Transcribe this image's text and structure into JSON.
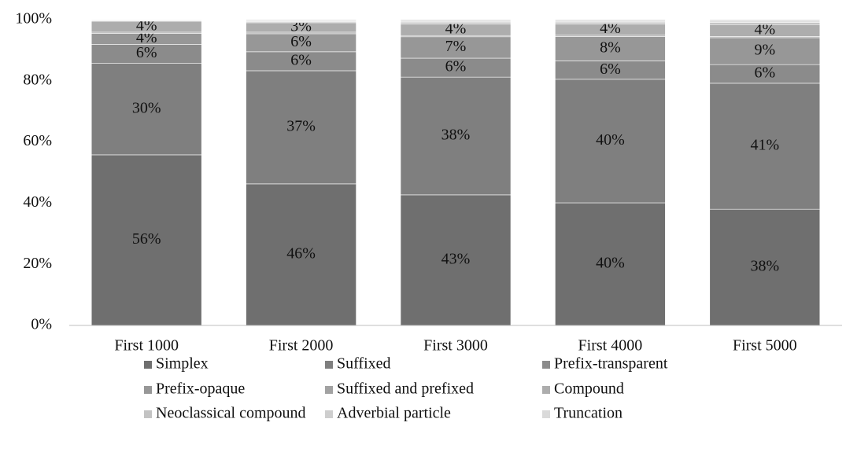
{
  "chart_data": {
    "type": "stacked_bar",
    "categories": [
      "First 1000",
      "First 2000",
      "First 3000",
      "First 4000",
      "First 5000"
    ],
    "series": [
      {
        "name": "Simplex",
        "color": "#6f6f6f",
        "values": [
          55.8,
          46.3,
          42.7,
          40.1,
          38.0
        ],
        "value_labels": [
          "56%",
          "46%",
          "43%",
          "40%",
          "38%"
        ]
      },
      {
        "name": "Suffixed",
        "color": "#7f7f7f",
        "values": [
          29.9,
          37.0,
          38.5,
          40.4,
          41.2
        ],
        "value_labels": [
          "30%",
          "37%",
          "38%",
          "40%",
          "41%"
        ]
      },
      {
        "name": "Prefix-transparent",
        "color": "#8b8b8b",
        "values": [
          6.2,
          6.2,
          6.2,
          6.0,
          6.1
        ],
        "value_labels": [
          "6%",
          "6%",
          "6%",
          "6%",
          "6%"
        ]
      },
      {
        "name": "Prefix-opaque",
        "color": "#979797",
        "values": [
          3.6,
          5.9,
          7.0,
          8.0,
          8.8
        ],
        "value_labels": [
          "4%",
          "6%",
          "7%",
          "8%",
          "9%"
        ]
      },
      {
        "name": "Suffixed and prefixed",
        "color": "#a2a2a2",
        "values": [
          0.4,
          0.5,
          0.4,
          0.4,
          0.4
        ],
        "value_labels": [
          null,
          null,
          null,
          null,
          null
        ]
      },
      {
        "name": "Compound",
        "color": "#adadad",
        "values": [
          3.6,
          3.1,
          3.8,
          3.7,
          3.9
        ],
        "value_labels": [
          "4%",
          "3%",
          "4%",
          "4%",
          "4%"
        ]
      },
      {
        "name": "Neoclassical compound",
        "color": "#c3c3c3",
        "values": [
          0.2,
          0.4,
          0.6,
          0.6,
          0.7
        ],
        "value_labels": [
          null,
          null,
          null,
          null,
          null
        ]
      },
      {
        "name": "Adverbial particle",
        "color": "#cecece",
        "values": [
          0.1,
          0.2,
          0.3,
          0.3,
          0.4
        ],
        "value_labels": [
          null,
          null,
          null,
          null,
          null
        ]
      },
      {
        "name": "Truncation",
        "color": "#dadada",
        "values": [
          0.2,
          0.4,
          0.5,
          0.5,
          0.5
        ],
        "value_labels": [
          null,
          null,
          null,
          null,
          null
        ]
      }
    ],
    "ylim": [
      0,
      100
    ],
    "yticks": [
      {
        "value": 0,
        "label": "0%"
      },
      {
        "value": 20,
        "label": "20%"
      },
      {
        "value": 40,
        "label": "40%"
      },
      {
        "value": 60,
        "label": "60%"
      },
      {
        "value": 80,
        "label": "80%"
      },
      {
        "value": 100,
        "label": "100%"
      }
    ],
    "grid": false,
    "legend": "bottom"
  }
}
